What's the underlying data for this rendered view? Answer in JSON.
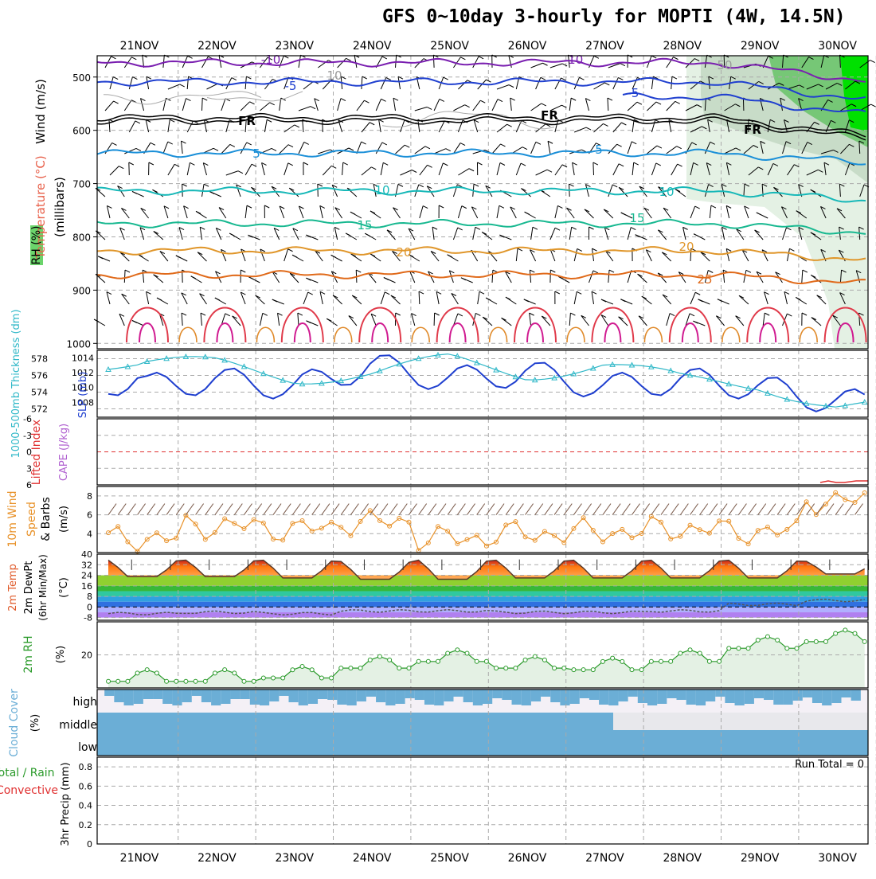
{
  "title": "GFS 0~10day 3-hourly for MOPTI (4W, 14.5N)",
  "dates": [
    "21NOV",
    "22NOV",
    "23NOV",
    "24NOV",
    "25NOV",
    "26NOV",
    "27NOV",
    "28NOV",
    "29NOV",
    "30NOV"
  ],
  "colors": {
    "grid": "#aaaaaa",
    "temp_cold": "#7a1fb0",
    "temp_cool": "#1f3fcf",
    "temp_mild": "#1a8fd8",
    "temp_10": "#17b8b8",
    "temp_15": "#17b890",
    "temp_warm": "#e0962a",
    "temp_hot": "#e06a1a",
    "rh_light": "#e4f1e4",
    "rh_mid": "#76c776",
    "rh_high": "#00e000",
    "slp": "#1f3fcf",
    "thickness": "#30b8c8",
    "cape": "#b060d0",
    "li": "#e03030",
    "wind10": "#e8922a",
    "barb": "#7a5a4a",
    "rh2m": "#2a9a2a",
    "cloud": "#6baed6",
    "precip": "#2a9a2a"
  },
  "panels": {
    "upper": {
      "ylabel_wind": "Wind (m/s)",
      "ylabel_temp": "Temperature (°C)",
      "ylabel_rh": "RH (%)",
      "ylabel_units": "(millibars)",
      "pressure_ticks": [
        "500",
        "600",
        "700",
        "800",
        "900",
        "1000"
      ],
      "contour_labels": [
        {
          "text": "-10",
          "color": "#7a1fb0"
        },
        {
          "text": "-10",
          "color": "#7a1fb0"
        },
        {
          "text": "-5",
          "color": "#1f3fcf"
        },
        {
          "text": "-5",
          "color": "#1f3fcf"
        },
        {
          "text": "FR",
          "color": "#000000"
        },
        {
          "text": "FR",
          "color": "#000000"
        },
        {
          "text": "FR",
          "color": "#000000"
        },
        {
          "text": "5",
          "color": "#1a8fd8"
        },
        {
          "text": "5",
          "color": "#1a8fd8"
        },
        {
          "text": "10",
          "color": "#17b8b8"
        },
        {
          "text": "10",
          "color": "#17b8b8"
        },
        {
          "text": "15",
          "color": "#17b890"
        },
        {
          "text": "15",
          "color": "#17b890"
        },
        {
          "text": "20",
          "color": "#e0962a"
        },
        {
          "text": "20",
          "color": "#e0962a"
        },
        {
          "text": "25",
          "color": "#e06a1a"
        },
        {
          "text": "50",
          "color": "#999999"
        },
        {
          "text": "10",
          "color": "#999999"
        }
      ]
    },
    "slp": {
      "label_thickness": "1000-500mb Thickness (dm)",
      "label_slp": "SLP (mb)",
      "thickness_ticks": [
        "578",
        "576",
        "574",
        "572"
      ],
      "slp_ticks": [
        "1014",
        "1012",
        "1010",
        "1008"
      ]
    },
    "cape": {
      "label_li": "Lifted Index",
      "label_cape": "CAPE (J/kg)",
      "li_ticks": [
        "-6",
        "-3",
        "0",
        "3",
        "6"
      ]
    },
    "wind10": {
      "label_wind": "10m Wind",
      "label_speed": "Speed",
      "label_barbs": "& Barbs",
      "label_units": "(m/s)",
      "ticks": [
        "8",
        "6",
        "4"
      ]
    },
    "temp2m": {
      "label_temp": "2m Temp",
      "label_dew": "2m DewPt",
      "label_minmax": "(6hr Min/Max)",
      "label_units": "(°C)",
      "ticks": [
        "40",
        "32",
        "24",
        "16",
        "8",
        "0",
        "-8"
      ]
    },
    "rh2m": {
      "label": "2m RH",
      "label_units": "(%)",
      "ticks": [
        "20"
      ]
    },
    "cloud": {
      "label": "Cloud Cover",
      "label_units": "(%)",
      "levels": [
        "high",
        "middle",
        "low"
      ]
    },
    "precip": {
      "label_total": "Total / Rain",
      "label_conv": "Convective",
      "label_3hr": "3hr Precip (mm)",
      "ticks": [
        "0.8",
        "0.6",
        "0.4",
        "0.2",
        "0"
      ],
      "run_total": "Run Total = 0"
    }
  },
  "chart_data": [
    {
      "type": "line",
      "title": "1000-500mb Thickness (dm) & SLP (mb)",
      "x": [
        "21NOV",
        "22NOV",
        "23NOV",
        "24NOV",
        "25NOV",
        "26NOV",
        "27NOV",
        "28NOV",
        "29NOV",
        "30NOV"
      ],
      "series": [
        {
          "name": "SLP (mb)",
          "values": [
            1010,
            1011,
            1010,
            1013,
            1011,
            1012,
            1010,
            1011,
            1010,
            1008
          ]
        },
        {
          "name": "1000-500mb Thickness (dm)",
          "values": [
            577.5,
            577.3,
            575.8,
            576.2,
            577.8,
            576.2,
            577.3,
            575.4,
            575.0,
            572.2
          ]
        }
      ],
      "ylim_slp": [
        1006,
        1015
      ],
      "ylim_thickness": [
        571,
        579
      ]
    },
    {
      "type": "line",
      "title": "10m Wind Speed (m/s)",
      "x": [
        "21NOV",
        "22NOV",
        "23NOV",
        "24NOV",
        "25NOV",
        "26NOV",
        "27NOV",
        "28NOV",
        "29NOV",
        "30NOV"
      ],
      "series": [
        {
          "name": "10m wind speed",
          "values": [
            3.5,
            4.8,
            4.5,
            5.2,
            3.5,
            4.0,
            4.2,
            4.5,
            4.2,
            7.5
          ]
        }
      ],
      "ylim": [
        2,
        9
      ]
    },
    {
      "type": "area",
      "title": "2m Temp / 2m DewPt (°C)",
      "x": [
        "21NOV",
        "22NOV",
        "23NOV",
        "24NOV",
        "25NOV",
        "26NOV",
        "27NOV",
        "28NOV",
        "29NOV",
        "30NOV"
      ],
      "series": [
        {
          "name": "2m Temp daily max",
          "values": [
            36,
            36,
            36,
            35,
            36,
            36,
            36,
            36,
            36,
            35
          ]
        },
        {
          "name": "2m Temp daily min",
          "values": [
            23,
            23,
            22,
            21,
            21,
            22,
            22,
            22,
            22,
            25
          ]
        },
        {
          "name": "2m DewPt",
          "values": [
            -5,
            -4,
            -5,
            -3,
            -3,
            -4,
            -4,
            -3,
            2,
            5
          ]
        }
      ],
      "ylim": [
        -10,
        40
      ]
    },
    {
      "type": "area",
      "title": "2m RH (%)",
      "x": [
        "21NOV",
        "22NOV",
        "23NOV",
        "24NOV",
        "25NOV",
        "26NOV",
        "27NOV",
        "28NOV",
        "29NOV",
        "30NOV"
      ],
      "series": [
        {
          "name": "2m RH",
          "values": [
            10,
            10,
            12,
            18,
            22,
            18,
            17,
            22,
            30,
            34
          ]
        }
      ],
      "ylim": [
        0,
        40
      ]
    },
    {
      "type": "bar",
      "title": "3hr Precip (mm)",
      "x": [
        "21NOV",
        "22NOV",
        "23NOV",
        "24NOV",
        "25NOV",
        "26NOV",
        "27NOV",
        "28NOV",
        "29NOV",
        "30NOV"
      ],
      "series": [
        {
          "name": "3hr precip",
          "values": [
            0,
            0,
            0,
            0,
            0,
            0,
            0,
            0,
            0,
            0
          ]
        }
      ],
      "ylim": [
        0,
        0.9
      ]
    }
  ]
}
